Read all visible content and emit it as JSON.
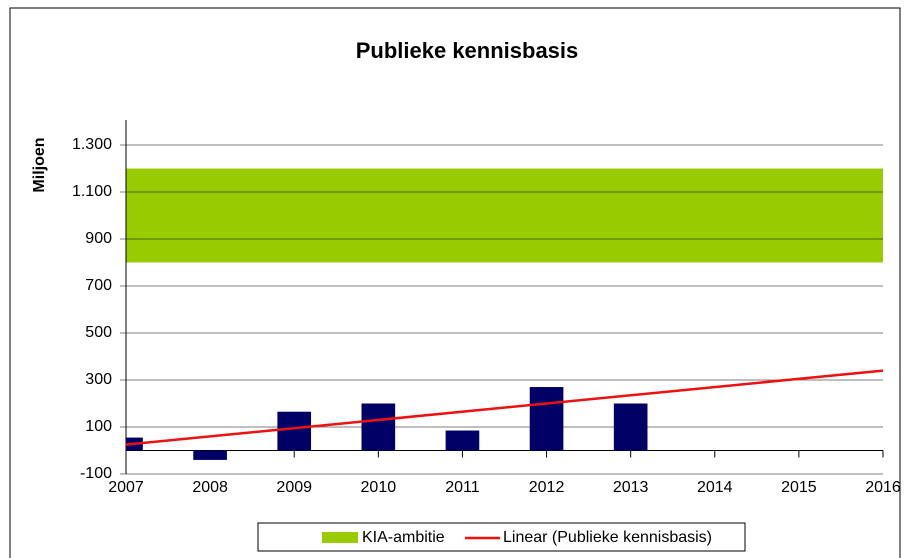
{
  "chart_data": {
    "type": "bar",
    "title": "Publieke kennisbasis",
    "ylabel": "Miljoen",
    "x": [
      2007,
      2008,
      2009,
      2010,
      2011,
      2012,
      2013
    ],
    "series": [
      {
        "color": "#000066",
        "values": [
          55,
          -40,
          165,
          200,
          85,
          270,
          200
        ]
      }
    ],
    "band": {
      "name": "KIA-ambitie",
      "color": "#99cc00",
      "range": [
        800,
        1200
      ]
    },
    "trend": {
      "name": "Linear (Publieke kennisbasis)",
      "color": "#ee1111",
      "x": [
        2007,
        2016
      ],
      "values": [
        25,
        340
      ]
    },
    "xlim": [
      2007,
      2016
    ],
    "xticks": [
      2007,
      2008,
      2009,
      2010,
      2011,
      2012,
      2013,
      2014,
      2015,
      2016
    ],
    "ylim": [
      -100,
      1300
    ],
    "yticks": [
      -100,
      100,
      300,
      500,
      700,
      900,
      {
        "value": 1100,
        "label": "1.100"
      },
      {
        "value": 1300,
        "label": "1.300"
      }
    ],
    "grid": true,
    "legend": "bottom"
  }
}
